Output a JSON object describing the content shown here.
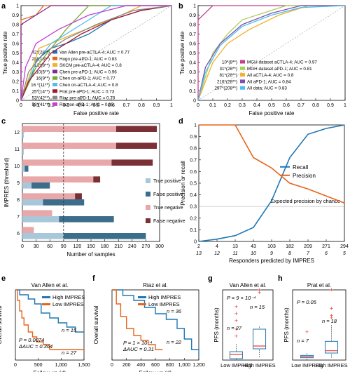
{
  "colors": {
    "blue": "#1F77B4",
    "orange": "#E8641B",
    "lightblue": "#A9C7DA",
    "darkblue": "#3C6E8C",
    "pink": "#E8A7A9",
    "darkred": "#7A3035",
    "red": "#E5413A"
  },
  "chart_data": [
    {
      "panel": "a",
      "type": "line",
      "xlabel": "False positive rate",
      "ylabel": "True positive rate",
      "xlim": [
        0,
        1
      ],
      "ylim": [
        0,
        1
      ],
      "xticks": [
        "0",
        "0.1",
        "0.2",
        "0.3",
        "0.4",
        "0.5",
        "0.6",
        "0.7",
        "0.8",
        "0.9",
        "1"
      ],
      "yticks": [
        "0",
        "0.1",
        "0.2",
        "0.3",
        "0.4",
        "0.5",
        "0.6",
        "0.7",
        "0.8",
        "0.9",
        "1"
      ],
      "series": [
        {
          "name": "Van Allen pre-aCTLA-4; AUC = 0.77",
          "n": "42*(28**)",
          "color": "#1F77B4",
          "points": [
            [
              0,
              0
            ],
            [
              0.07,
              0.25
            ],
            [
              0.1,
              0.42
            ],
            [
              0.2,
              0.55
            ],
            [
              0.3,
              0.6
            ],
            [
              0.45,
              0.7
            ],
            [
              0.6,
              0.85
            ],
            [
              0.8,
              0.95
            ],
            [
              1,
              1
            ]
          ]
        },
        {
          "name": "Hugo pre-aPD-1; AUC = 0.83",
          "n": "28*(13**)",
          "color": "#E8641B",
          "points": [
            [
              0,
              0
            ],
            [
              0,
              0.85
            ],
            [
              0.1,
              0.9
            ],
            [
              0.15,
              1
            ],
            [
              1,
              1
            ]
          ]
        },
        {
          "name": "SKCM pre-aCTLA-4; AUC = 0.8",
          "n": "13*(8**)",
          "color": "#EFB22A",
          "points": [
            [
              0,
              0
            ],
            [
              0.12,
              0.55
            ],
            [
              0.35,
              0.7
            ],
            [
              0.6,
              0.85
            ],
            [
              0.8,
              1
            ],
            [
              1,
              1
            ]
          ]
        },
        {
          "name": "Chen pre-aPD-1; AUC = 0.96",
          "n": "10(5**)",
          "color": "#7E2F8E",
          "points": [
            [
              0,
              0
            ],
            [
              0,
              0.8
            ],
            [
              0.2,
              1
            ],
            [
              1,
              1
            ]
          ]
        },
        {
          "name": "Chen on-aPD-1; AUC = 0.77",
          "n": "16(9**)",
          "color": "#77AC30",
          "points": [
            [
              0,
              0
            ],
            [
              0.1,
              0.35
            ],
            [
              0.3,
              0.75
            ],
            [
              0.45,
              1
            ],
            [
              1,
              1
            ]
          ]
        },
        {
          "name": "Chen on-aCTLA-4; AUC = 0.8",
          "n": "16 *(11**)",
          "color": "#4DBEEE",
          "points": [
            [
              0,
              0
            ],
            [
              0.1,
              0.4
            ],
            [
              0.2,
              0.6
            ],
            [
              0.4,
              0.8
            ],
            [
              0.6,
              1
            ],
            [
              1,
              1
            ]
          ]
        },
        {
          "name": "Prat pre-aPD-1; AUC = 0.73",
          "n": "25*(14**)",
          "color": "#A2142F",
          "points": [
            [
              0,
              0
            ],
            [
              0.05,
              0.2
            ],
            [
              0.2,
              0.5
            ],
            [
              0.4,
              0.7
            ],
            [
              0.6,
              0.85
            ],
            [
              0.8,
              0.95
            ],
            [
              1,
              1
            ]
          ]
        },
        {
          "name": "Riaz pre-aPD-1; AUC = 0.78",
          "n": "53*(42**)",
          "color": "#888888",
          "points": [
            [
              0,
              0
            ],
            [
              0.05,
              0.3
            ],
            [
              0.15,
              0.5
            ],
            [
              0.3,
              0.65
            ],
            [
              0.5,
              0.8
            ],
            [
              0.75,
              0.95
            ],
            [
              1,
              1
            ]
          ]
        },
        {
          "name": "Riaz on-aPD-1; AUC = 0.85",
          "n": "53*(41**)",
          "color": "#C63FD0",
          "points": [
            [
              0,
              0
            ],
            [
              0.03,
              0.35
            ],
            [
              0.1,
              0.6
            ],
            [
              0.25,
              0.75
            ],
            [
              0.45,
              0.9
            ],
            [
              0.7,
              1
            ],
            [
              1,
              1
            ]
          ]
        }
      ]
    },
    {
      "panel": "b",
      "type": "line",
      "xlabel": "False positive rate",
      "ylabel": "True positive rate",
      "xlim": [
        0,
        1
      ],
      "ylim": [
        0,
        1
      ],
      "xticks": [
        "0",
        "0.1",
        "0.2",
        "0.3",
        "0.4",
        "0.5",
        "0.6",
        "0.7",
        "0.8",
        "0.9",
        "1"
      ],
      "yticks": [
        "0",
        "0.1",
        "0.2",
        "0.3",
        "0.4",
        "0.5",
        "0.6",
        "0.7",
        "0.8",
        "0.9",
        "1"
      ],
      "series": [
        {
          "name": "MGH dataset aCTLA-4; AUC = 0.97",
          "n": "10*(8**)",
          "color": "#C63F8E",
          "points": [
            [
              0,
              0
            ],
            [
              0,
              0.85
            ],
            [
              0.1,
              1
            ],
            [
              1,
              1
            ]
          ]
        },
        {
          "name": "MGH dataset aPD-1; AUC = 0.81",
          "n": "31*(28**)",
          "color": "#A8D05A",
          "points": [
            [
              0,
              0
            ],
            [
              0.1,
              0.5
            ],
            [
              0.2,
              0.7
            ],
            [
              0.3,
              0.85
            ],
            [
              0.5,
              0.95
            ],
            [
              0.6,
              1
            ],
            [
              1,
              1
            ]
          ]
        },
        {
          "name": "All aCTLA-4; AUC = 0.8",
          "n": "81*(28**)",
          "color": "#EFB22A",
          "points": [
            [
              0,
              0
            ],
            [
              0.1,
              0.4
            ],
            [
              0.2,
              0.6
            ],
            [
              0.35,
              0.75
            ],
            [
              0.55,
              0.9
            ],
            [
              0.75,
              1
            ],
            [
              1,
              1
            ]
          ]
        },
        {
          "name": "All aPD-1; AUC = 0.84",
          "n": "216*(28**)",
          "color": "#7E4FB0",
          "points": [
            [
              0,
              0
            ],
            [
              0.05,
              0.35
            ],
            [
              0.15,
              0.6
            ],
            [
              0.3,
              0.8
            ],
            [
              0.5,
              0.92
            ],
            [
              0.7,
              1
            ],
            [
              1,
              1
            ]
          ]
        },
        {
          "name": "All data; AUC = 0.83",
          "n": "297*(208**)",
          "color": "#4DBEEE",
          "points": [
            [
              0,
              0
            ],
            [
              0.05,
              0.3
            ],
            [
              0.15,
              0.58
            ],
            [
              0.3,
              0.78
            ],
            [
              0.5,
              0.9
            ],
            [
              0.7,
              0.98
            ],
            [
              1,
              1
            ]
          ]
        }
      ]
    },
    {
      "panel": "c",
      "type": "bar",
      "ylabel": "IMPRES (threshold)",
      "xlabel": "Number of samples",
      "xlim": [
        0,
        300
      ],
      "xticks": [
        "0",
        "30",
        "60",
        "90",
        "120",
        "150",
        "180",
        "210",
        "240",
        "270",
        "300"
      ],
      "categories": [
        "12",
        "11",
        "10",
        "9",
        "8",
        "7",
        "6"
      ],
      "series": [
        {
          "name": "True positive",
          "values": [
            3,
            3,
            5,
            20,
            45,
            80,
            90
          ]
        },
        {
          "name": "False positive",
          "values": [
            0,
            0,
            8,
            40,
            90,
            120,
            180
          ]
        },
        {
          "name": "True negative",
          "values": [
            205,
            205,
            195,
            155,
            115,
            65,
            25
          ]
        },
        {
          "name": "False negative",
          "values": [
            89,
            89,
            90,
            15,
            15,
            0,
            0
          ]
        }
      ],
      "vline": 90,
      "legend": [
        "True positive",
        "False positive",
        "True negative",
        "False negative"
      ]
    },
    {
      "panel": "d",
      "type": "line",
      "ylabel": "Precision or recall",
      "xlabel": "Responders predicted by IMPRES",
      "ylim": [
        0,
        1
      ],
      "yticks": [
        "0",
        "0.1",
        "0.2",
        "0.3",
        "0.4",
        "0.5",
        "0.6",
        "0.7",
        "0.8",
        "0.9",
        "1"
      ],
      "categories": [
        "2",
        "4",
        "13",
        "43",
        "103",
        "182",
        "209",
        "271",
        "294"
      ],
      "thresholds": [
        "13",
        "12",
        "11",
        "10",
        "9",
        "8",
        "7",
        "6",
        "5"
      ],
      "series": [
        {
          "name": "Recall",
          "values": [
            0.0,
            0.02,
            0.05,
            0.12,
            0.35,
            0.72,
            0.92,
            0.97,
            1.0
          ]
        },
        {
          "name": "Precision",
          "values": [
            1.0,
            1.0,
            1.0,
            0.72,
            0.63,
            0.5,
            0.45,
            0.39,
            0.33
          ]
        }
      ],
      "hline": 0.3,
      "annotation": "Expected precision by chance"
    },
    {
      "panel": "e",
      "type": "line",
      "title": "Van Allen et al.",
      "ylabel": "Overall survival",
      "xlabel": "Follow-up (d)",
      "xlim": [
        0,
        1600
      ],
      "ylim": [
        0,
        1
      ],
      "xticks": [
        "0",
        "500",
        "1,000",
        "1,500"
      ],
      "series": [
        {
          "name": "High IMPRES",
          "n": "n = 15",
          "points": [
            [
              0,
              1
            ],
            [
              100,
              0.93
            ],
            [
              300,
              0.87
            ],
            [
              450,
              0.8
            ],
            [
              600,
              0.67
            ],
            [
              800,
              0.6
            ],
            [
              1000,
              0.53
            ],
            [
              1200,
              0.47
            ],
            [
              1400,
              0.4
            ],
            [
              1600,
              0.4
            ]
          ]
        },
        {
          "name": "Low IMPRES",
          "n": "n = 27",
          "points": [
            [
              0,
              1
            ],
            [
              50,
              0.85
            ],
            [
              100,
              0.7
            ],
            [
              150,
              0.6
            ],
            [
              200,
              0.5
            ],
            [
              300,
              0.4
            ],
            [
              400,
              0.33
            ],
            [
              500,
              0.26
            ],
            [
              650,
              0.22
            ],
            [
              800,
              0.15
            ],
            [
              1600,
              0.15
            ]
          ]
        }
      ],
      "stats": [
        "P = 0.0074",
        "ΔAUC = 0.364"
      ]
    },
    {
      "panel": "f",
      "type": "line",
      "title": "Riaz et al.",
      "ylabel": "Overall survival",
      "xlabel": "Follow-up (d)",
      "xlim": [
        0,
        1200
      ],
      "ylim": [
        0,
        1
      ],
      "xticks": [
        "0",
        "200",
        "400",
        "600",
        "800",
        "1,000",
        "1,200"
      ],
      "series": [
        {
          "name": "High IMPRES",
          "n": "n = 36",
          "points": [
            [
              0,
              1
            ],
            [
              150,
              0.92
            ],
            [
              300,
              0.85
            ],
            [
              450,
              0.75
            ],
            [
              600,
              0.66
            ],
            [
              750,
              0.58
            ],
            [
              900,
              0.45
            ],
            [
              1000,
              0.3
            ],
            [
              1100,
              0.15
            ],
            [
              1200,
              0.05
            ]
          ]
        },
        {
          "name": "Low IMPRES",
          "n": "n = 22",
          "points": [
            [
              0,
              1
            ],
            [
              60,
              0.8
            ],
            [
              120,
              0.62
            ],
            [
              200,
              0.45
            ],
            [
              300,
              0.35
            ],
            [
              400,
              0.28
            ],
            [
              500,
              0.22
            ],
            [
              600,
              0.15
            ],
            [
              700,
              0.15
            ]
          ]
        }
      ],
      "stats": [
        "P = 1 × 10⁻⁴",
        "ΔAUC = 0.31"
      ]
    },
    {
      "panel": "g",
      "type": "box",
      "title": "Van Allen et al.",
      "ylabel": "PFS (months)",
      "ylim": [
        0,
        50
      ],
      "categories": [
        "Low IMPRES",
        "High IMPRES"
      ],
      "n": [
        "n = 27",
        "n = 15"
      ],
      "stat": "P = 9 × 10⁻⁴"
    },
    {
      "panel": "h",
      "type": "box",
      "title": "Prat et al.",
      "ylabel": "PFS (months)",
      "ylim": [
        0,
        30
      ],
      "categories": [
        "Low IMPRES",
        "High IMPRES"
      ],
      "n": [
        "n = 7",
        "n = 18"
      ],
      "stat": "P = 0.05"
    }
  ]
}
